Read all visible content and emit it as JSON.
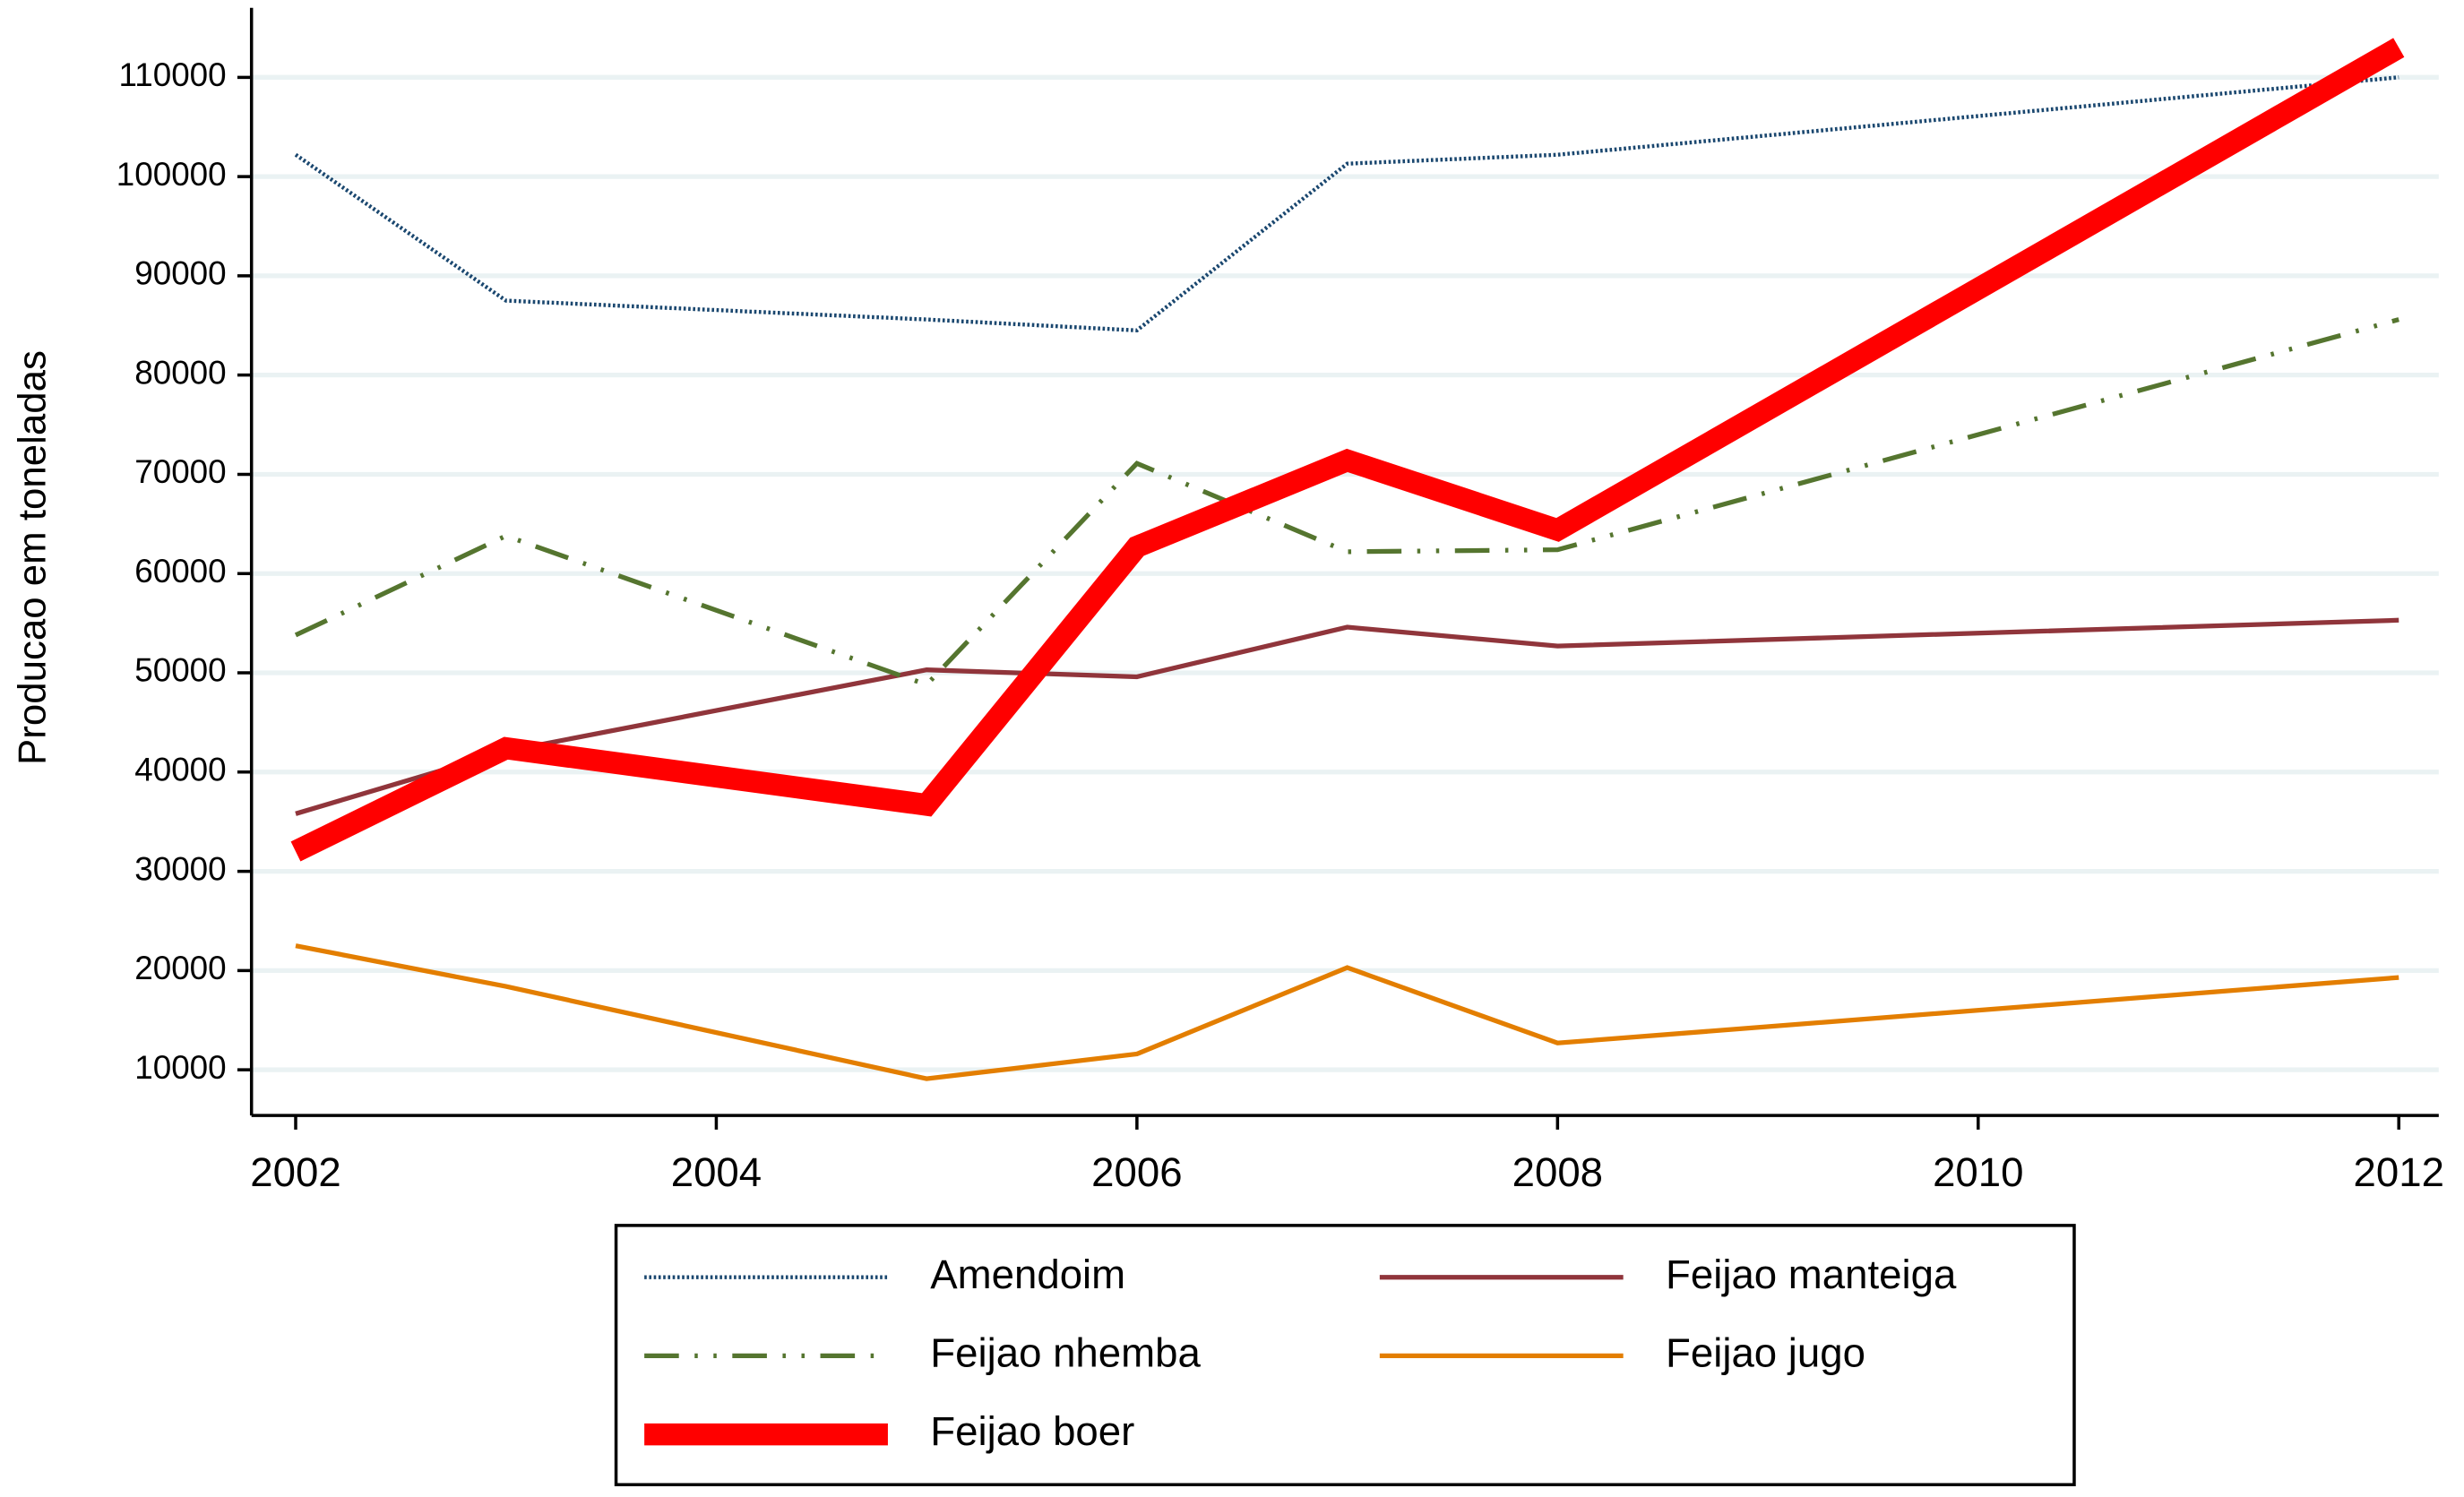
{
  "chart_data": {
    "type": "line",
    "y_label": "Producao em toneladas",
    "x": [
      2002,
      2003,
      2005,
      2006,
      2007,
      2008,
      2012
    ],
    "series": [
      {
        "name": "Amendoim",
        "color": "#1a476f",
        "width": 2.5,
        "dash": "1.5 1.5",
        "values": [
          102200,
          87500,
          85600,
          84500,
          101300,
          102200,
          110000
        ]
      },
      {
        "name": "Feijao manteiga",
        "color": "#90353b",
        "width": 3,
        "dash": "none",
        "values": [
          35800,
          42100,
          50300,
          49600,
          54600,
          52700,
          55300
        ]
      },
      {
        "name": "Feijao nhemba",
        "color": "#55752f",
        "width": 3,
        "dash": "22 10 2 10 2 10",
        "values": [
          53800,
          63800,
          48800,
          71100,
          62200,
          62400,
          85600
        ]
      },
      {
        "name": "Feijao jugo",
        "color": "#e37e00",
        "width": 3,
        "dash": "none",
        "values": [
          22500,
          18400,
          9100,
          11600,
          20300,
          12700,
          19300
        ]
      },
      {
        "name": "Feijao boer",
        "color": "#ff0000",
        "width": 14,
        "dash": "none",
        "values": [
          32000,
          42400,
          36700,
          62700,
          71400,
          64400,
          113000
        ]
      }
    ],
    "xlim": [
      2001.79,
      2012.19
    ],
    "xticks": [
      2002,
      2004,
      2006,
      2008,
      2010,
      2012
    ],
    "ylim": [
      5400,
      117000
    ],
    "yticks": [
      10000,
      20000,
      30000,
      40000,
      50000,
      60000,
      70000,
      80000,
      90000,
      100000,
      110000
    ],
    "grid": true,
    "legend": "bottom"
  }
}
